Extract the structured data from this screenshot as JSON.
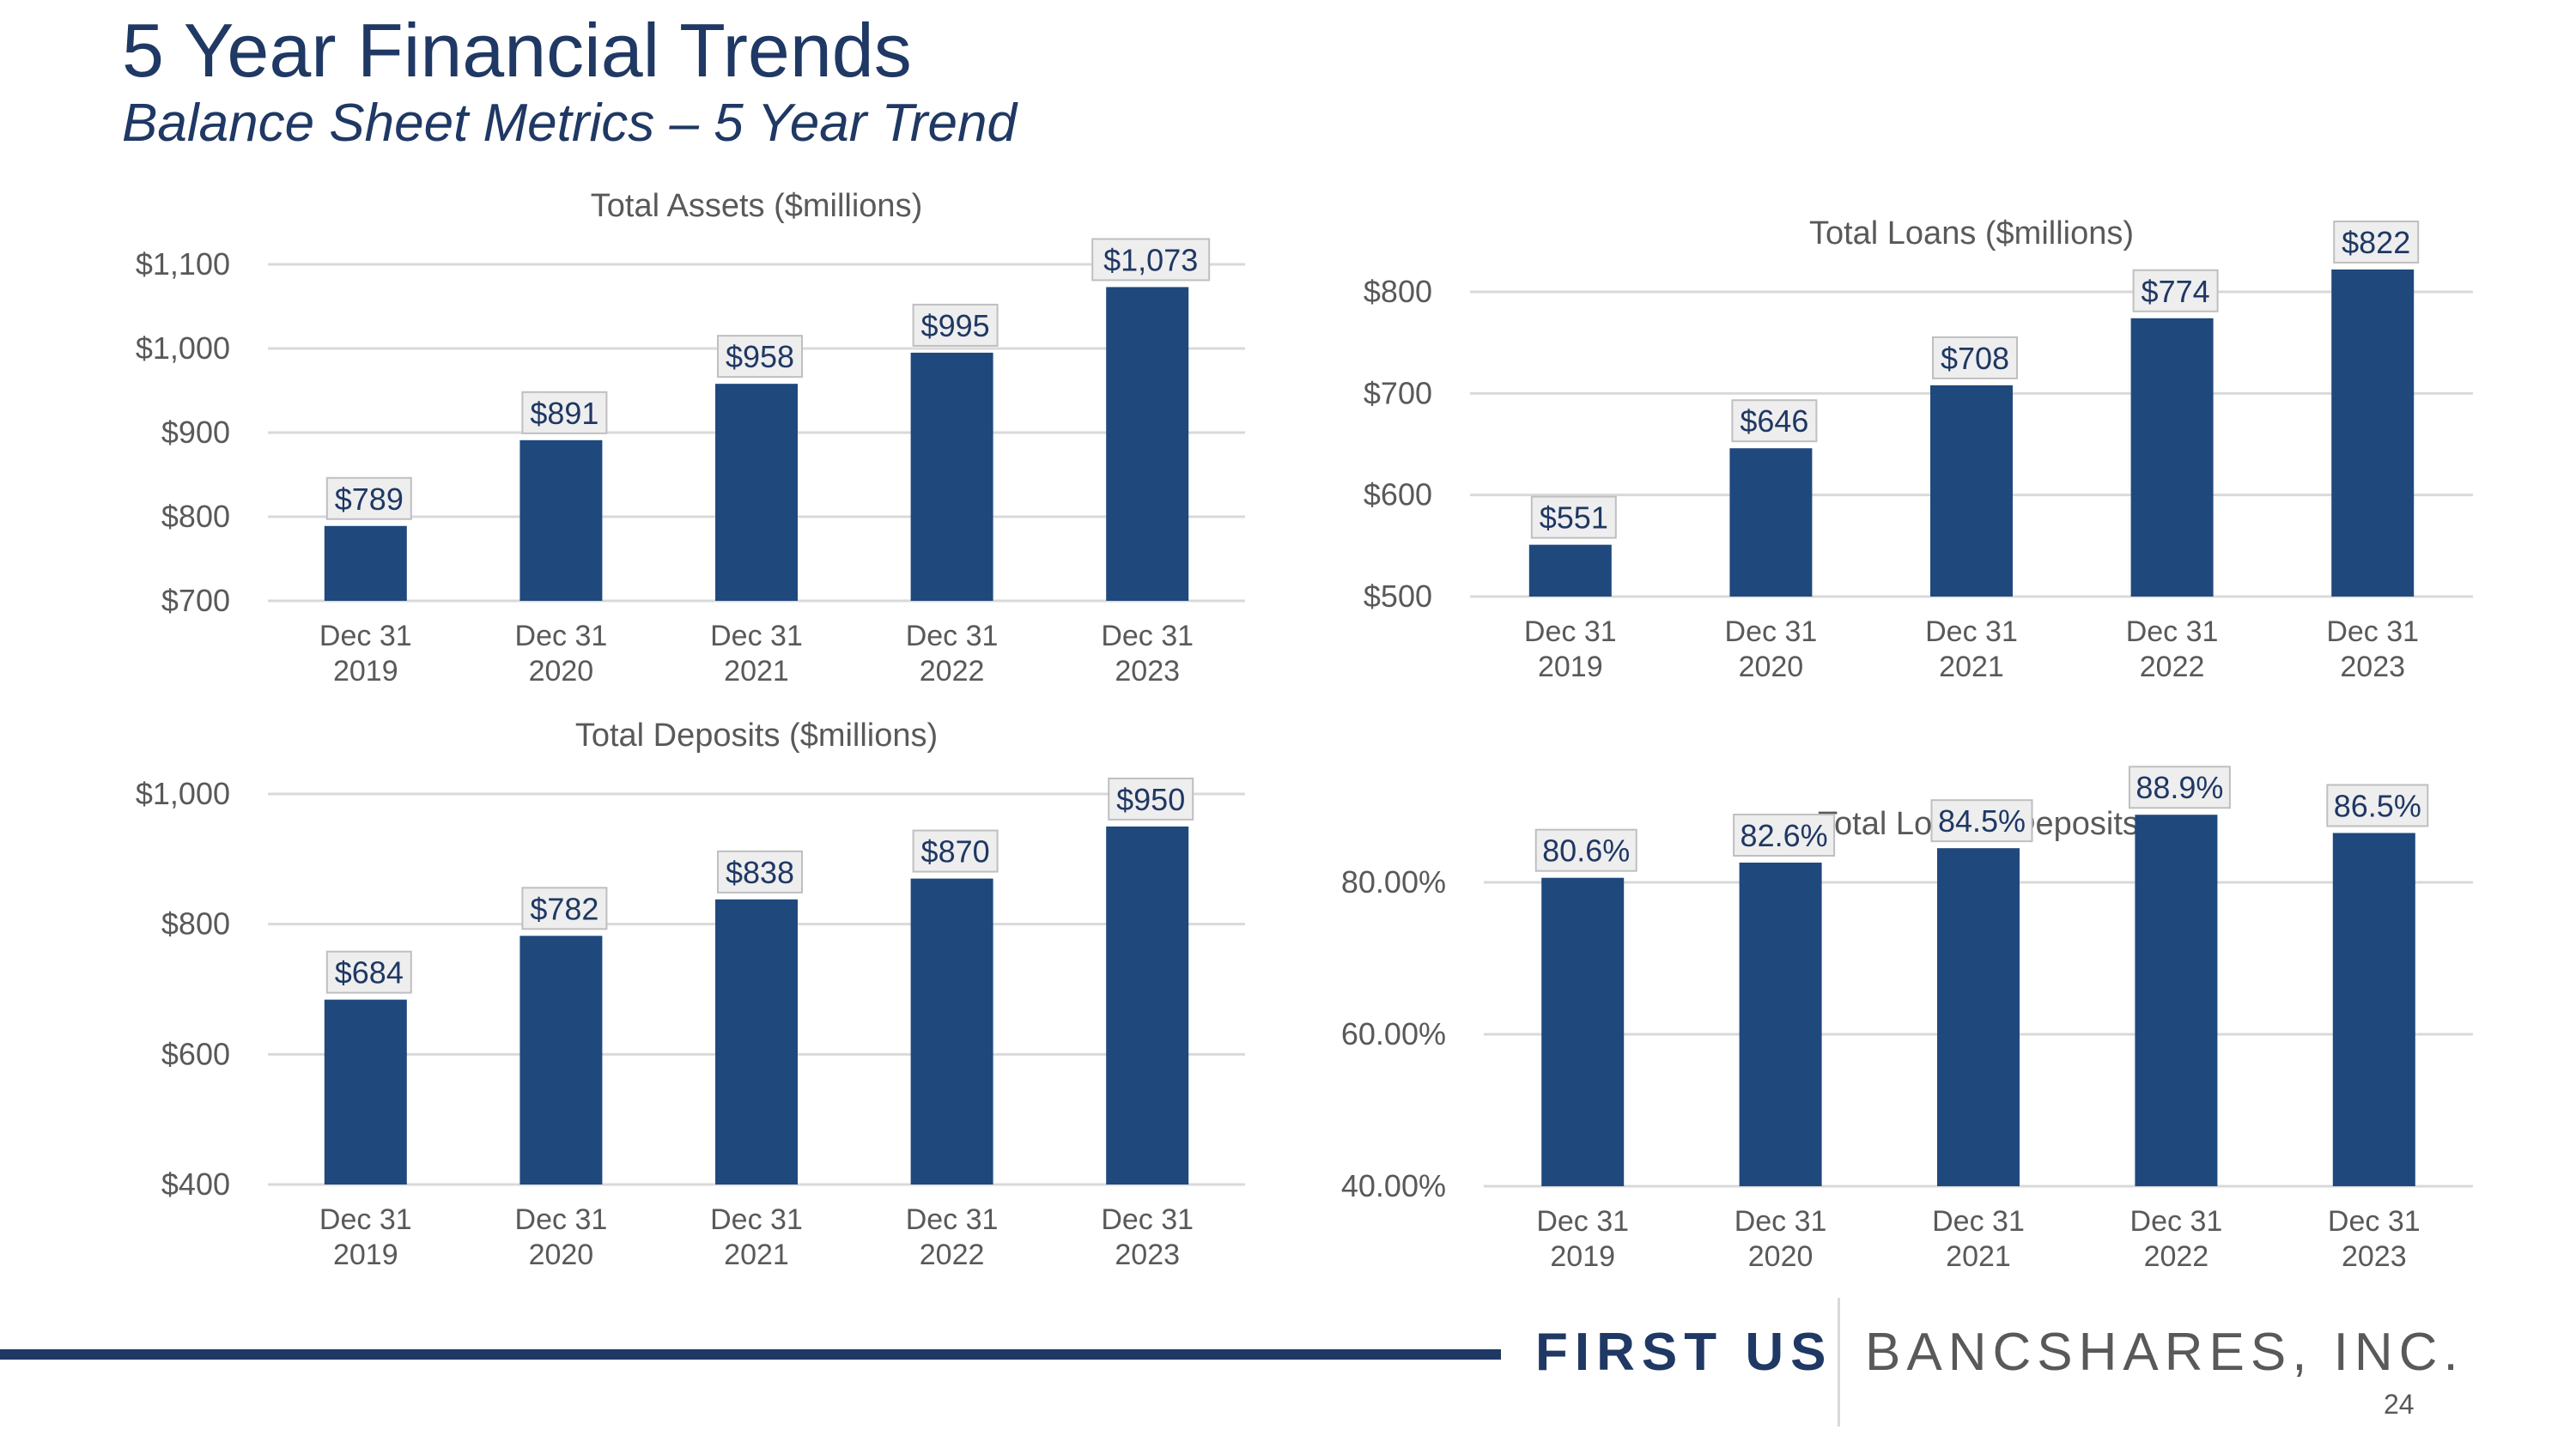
{
  "page": {
    "title": "5 Year Financial Trends",
    "subtitle": "Balance Sheet Metrics – 5 Year Trend",
    "logo_primary": "FIRST US",
    "logo_secondary": "BANCSHARES, INC.",
    "page_number": "24"
  },
  "colors": {
    "bar": "#1f497d",
    "title": "#1f3864",
    "gridline": "#d9d9d9",
    "text": "#595959",
    "label_bg": "#eeeeee",
    "label_border": "#bfbfbf"
  },
  "chart_data": [
    {
      "type": "bar",
      "title": "Total Assets ($millions)",
      "categories": [
        [
          "Dec 31",
          "2019"
        ],
        [
          "Dec 31",
          "2020"
        ],
        [
          "Dec 31",
          "2021"
        ],
        [
          "Dec 31",
          "2022"
        ],
        [
          "Dec 31",
          "2023"
        ]
      ],
      "values": [
        789,
        891,
        958,
        995,
        1073
      ],
      "data_labels": [
        "$789",
        "$891",
        "$958",
        "$995",
        "$1,073"
      ],
      "ylim": [
        700,
        1100
      ],
      "yticks": [
        700,
        800,
        900,
        1000,
        1100
      ],
      "ytick_labels": [
        "$700",
        "$800",
        "$900",
        "$1,000",
        "$1,100"
      ]
    },
    {
      "type": "bar",
      "title": "Total Loans ($millions)",
      "categories": [
        [
          "Dec 31",
          "2019"
        ],
        [
          "Dec 31",
          "2020"
        ],
        [
          "Dec 31",
          "2021"
        ],
        [
          "Dec 31",
          "2022"
        ],
        [
          "Dec 31",
          "2023"
        ]
      ],
      "values": [
        551,
        646,
        708,
        774,
        822
      ],
      "data_labels": [
        "$551",
        "$646",
        "$708",
        "$774",
        "$822"
      ],
      "ylim": [
        500,
        800
      ],
      "yticks": [
        500,
        600,
        700,
        800
      ],
      "ytick_labels": [
        "$500",
        "$600",
        "$700",
        "$800"
      ]
    },
    {
      "type": "bar",
      "title": "Total Deposits ($millions)",
      "categories": [
        [
          "Dec 31",
          "2019"
        ],
        [
          "Dec 31",
          "2020"
        ],
        [
          "Dec 31",
          "2021"
        ],
        [
          "Dec 31",
          "2022"
        ],
        [
          "Dec 31",
          "2023"
        ]
      ],
      "values": [
        684,
        782,
        838,
        870,
        950
      ],
      "data_labels": [
        "$684",
        "$782",
        "$838",
        "$870",
        "$950"
      ],
      "ylim": [
        400,
        1000
      ],
      "yticks": [
        400,
        600,
        800,
        1000
      ],
      "ytick_labels": [
        "$400",
        "$600",
        "$800",
        "$1,000"
      ]
    },
    {
      "type": "bar",
      "title": "Total Loans / Deposits",
      "categories": [
        [
          "Dec 31",
          "2019"
        ],
        [
          "Dec 31",
          "2020"
        ],
        [
          "Dec 31",
          "2021"
        ],
        [
          "Dec 31",
          "2022"
        ],
        [
          "Dec 31",
          "2023"
        ]
      ],
      "values": [
        80.6,
        82.6,
        84.5,
        88.9,
        86.5
      ],
      "data_labels": [
        "80.6%",
        "82.6%",
        "84.5%",
        "88.9%",
        "86.5%"
      ],
      "ylim": [
        40,
        80
      ],
      "yticks": [
        40,
        60,
        80
      ],
      "ytick_labels": [
        "40.00%",
        "60.00%",
        "80.00%"
      ]
    }
  ]
}
